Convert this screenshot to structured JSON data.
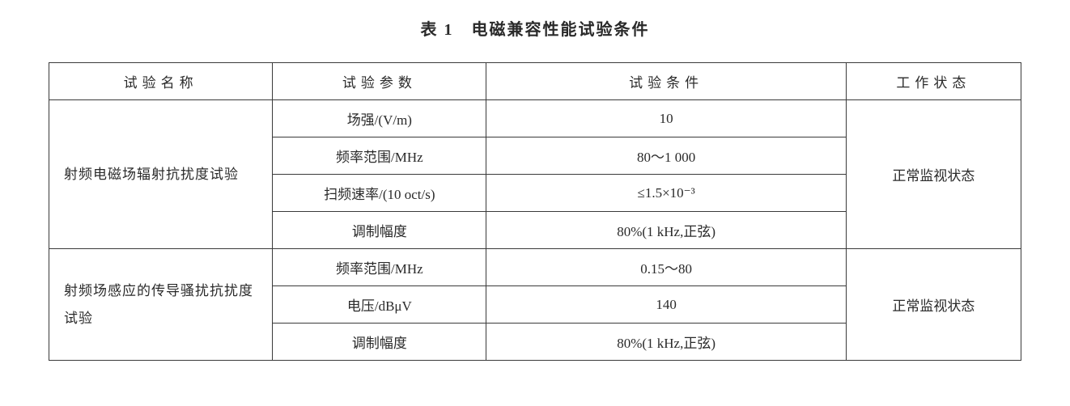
{
  "title": "表 1　电磁兼容性能试验条件",
  "headers": {
    "name": "试验名称",
    "param": "试验参数",
    "cond": "试验条件",
    "state": "工作状态"
  },
  "group1": {
    "name": "射频电磁场辐射抗扰度试验",
    "state": "正常监视状态",
    "rows": [
      {
        "param": "场强/(V/m)",
        "cond": "10"
      },
      {
        "param": "频率范围/MHz",
        "cond": "80～1 000"
      },
      {
        "param": "扫频速率/(10 oct/s)",
        "cond": "≤1.5×10⁻³"
      },
      {
        "param": "调制幅度",
        "cond": "80%(1 kHz,正弦)"
      }
    ]
  },
  "group2": {
    "name": "射频场感应的传导骚扰抗扰度试验",
    "state": "正常监视状态",
    "rows": [
      {
        "param": "频率范围/MHz",
        "cond": "0.15～80"
      },
      {
        "param": "电压/dBμV",
        "cond": "140"
      },
      {
        "param": "调制幅度",
        "cond": "80%(1 kHz,正弦)"
      }
    ]
  }
}
